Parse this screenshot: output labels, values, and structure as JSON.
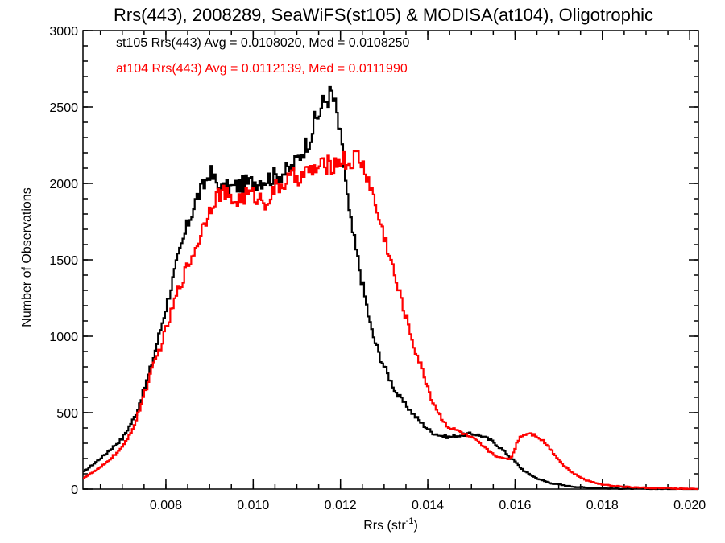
{
  "chart_data": {
    "type": "line",
    "title": "Rrs(443), 2008289, SeaWiFS(st105) & MODISA(at104), Oligotrophic",
    "xlabel_main": "Rrs (str",
    "xlabel_sup": "-1",
    "xlabel_close": ")",
    "ylabel": "Number of Observations",
    "xlim": [
      0.0061,
      0.0202
    ],
    "ylim": [
      0,
      3000
    ],
    "x_ticks": [
      0.008,
      0.01,
      0.012,
      0.014,
      0.016,
      0.018,
      0.02
    ],
    "x_tick_labels": [
      "0.008",
      "0.010",
      "0.012",
      "0.014",
      "0.016",
      "0.018",
      "0.020"
    ],
    "y_ticks": [
      0,
      500,
      1000,
      1500,
      2000,
      2500,
      3000
    ],
    "y_tick_labels": [
      "0",
      "500",
      "1000",
      "1500",
      "2000",
      "2500",
      "3000"
    ],
    "grid": false,
    "annotations": [
      {
        "text": "st105 Rrs(443) Avg = 0.0108020, Med = 0.0108250",
        "color": "#000000"
      },
      {
        "text": "at104 Rrs(443) Avg = 0.0112139, Med = 0.0111990",
        "color": "#ff0000"
      }
    ],
    "series": [
      {
        "color": "#000000",
        "x": [
          0.0061,
          0.0065,
          0.007,
          0.0073,
          0.0075,
          0.0077,
          0.0079,
          0.0081,
          0.0083,
          0.0085,
          0.0087,
          0.0089,
          0.009,
          0.0091,
          0.0092,
          0.0093,
          0.0095,
          0.0097,
          0.0099,
          0.0101,
          0.0103,
          0.0105,
          0.0107,
          0.0109,
          0.0111,
          0.0113,
          0.0114,
          0.0115,
          0.0116,
          0.0117,
          0.0118,
          0.0119,
          0.012,
          0.0121,
          0.0122,
          0.0123,
          0.0124,
          0.0125,
          0.0126,
          0.0127,
          0.0129,
          0.0131,
          0.0133,
          0.0135,
          0.0137,
          0.0139,
          0.0141,
          0.0143,
          0.0145,
          0.0147,
          0.0149,
          0.0151,
          0.0153,
          0.0155,
          0.0157,
          0.016,
          0.0162,
          0.0165,
          0.0168,
          0.0172,
          0.0176,
          0.018,
          0.0185,
          0.019,
          0.0196,
          0.0202
        ],
        "values": [
          110,
          200,
          330,
          480,
          650,
          840,
          1070,
          1300,
          1530,
          1730,
          1900,
          2000,
          2080,
          2030,
          1980,
          1960,
          1970,
          1990,
          2000,
          2020,
          2030,
          2050,
          2070,
          2100,
          2200,
          2300,
          2400,
          2450,
          2520,
          2560,
          2590,
          2480,
          2300,
          2080,
          1800,
          1650,
          1500,
          1350,
          1200,
          1050,
          870,
          740,
          620,
          550,
          480,
          420,
          370,
          350,
          340,
          350,
          360,
          360,
          340,
          310,
          260,
          180,
          120,
          70,
          40,
          20,
          10,
          5,
          3,
          2,
          1,
          0
        ]
      },
      {
        "color": "#ff0000",
        "x": [
          0.0061,
          0.0065,
          0.007,
          0.0073,
          0.0075,
          0.0077,
          0.0079,
          0.0081,
          0.0083,
          0.0085,
          0.0087,
          0.0089,
          0.0091,
          0.0093,
          0.0095,
          0.0097,
          0.0099,
          0.0101,
          0.0103,
          0.0105,
          0.0107,
          0.0109,
          0.0111,
          0.0113,
          0.0115,
          0.0117,
          0.0119,
          0.012,
          0.0121,
          0.0122,
          0.0123,
          0.0124,
          0.0125,
          0.0126,
          0.0127,
          0.0129,
          0.0131,
          0.0133,
          0.0135,
          0.0137,
          0.0139,
          0.0141,
          0.0143,
          0.0145,
          0.0147,
          0.0149,
          0.0151,
          0.0153,
          0.0155,
          0.0157,
          0.0159,
          0.0161,
          0.0163,
          0.0165,
          0.0167,
          0.0169,
          0.0171,
          0.0173,
          0.0176,
          0.018,
          0.0185,
          0.019,
          0.0196,
          0.0202
        ],
        "values": [
          70,
          140,
          270,
          430,
          620,
          790,
          950,
          1130,
          1320,
          1460,
          1590,
          1760,
          1900,
          1950,
          1880,
          1900,
          1930,
          1910,
          1880,
          1960,
          2000,
          2040,
          2050,
          2080,
          2100,
          2120,
          2130,
          2160,
          2150,
          2120,
          2160,
          2180,
          2120,
          2060,
          1970,
          1750,
          1560,
          1330,
          1130,
          920,
          760,
          580,
          470,
          400,
          380,
          350,
          320,
          270,
          230,
          200,
          200,
          340,
          370,
          350,
          300,
          230,
          160,
          110,
          60,
          30,
          15,
          8,
          4,
          0
        ]
      }
    ]
  }
}
